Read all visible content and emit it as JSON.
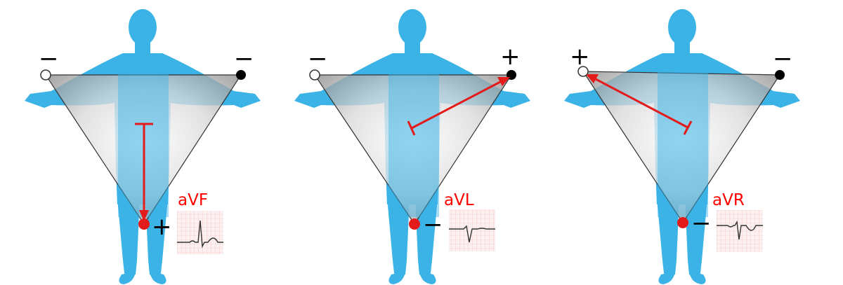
{
  "colors": {
    "body": "#3bb3e6",
    "triangle_edge": "#333333",
    "arrow": "#e31b1b",
    "label": "#ff0000",
    "negative_electrode": "#ffffff",
    "neutral_electrode": "#000000",
    "grid": "#f2b8b8",
    "ecg_trace": "#333333"
  },
  "panels": [
    {
      "lead": "aVF",
      "electrodes": {
        "right_arm": "-",
        "left_arm": "-",
        "foot": "+"
      },
      "arrow_from": "center",
      "arrow_to": "foot",
      "ecg_shape": "upright"
    },
    {
      "lead": "aVL",
      "electrodes": {
        "right_arm": "-",
        "left_arm": "+",
        "foot": "-"
      },
      "arrow_from": "center",
      "arrow_to": "left_arm",
      "ecg_shape": "biphasic"
    },
    {
      "lead": "aVR",
      "electrodes": {
        "right_arm": "+",
        "left_arm": "-",
        "foot": "-"
      },
      "arrow_from": "center",
      "arrow_to": "right_arm",
      "ecg_shape": "inverted"
    }
  ]
}
